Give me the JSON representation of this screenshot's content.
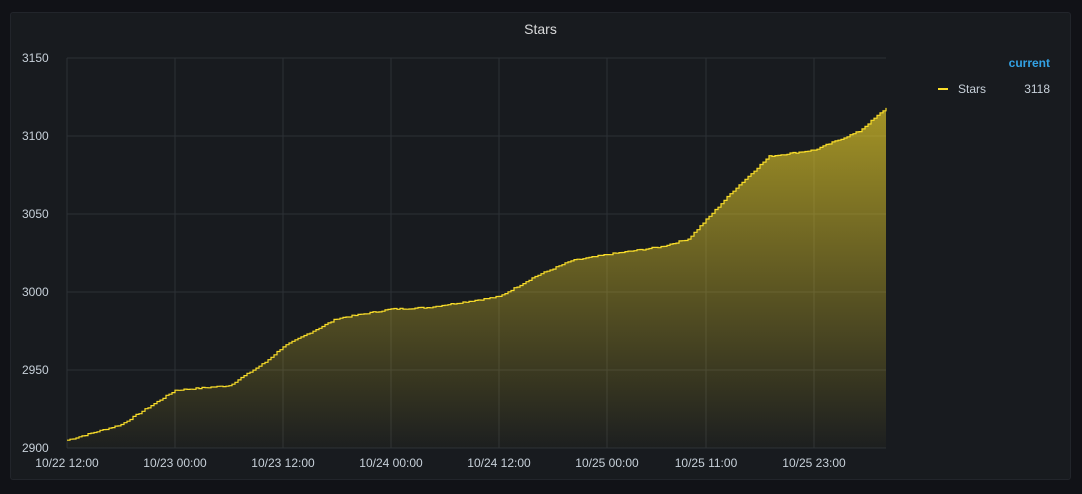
{
  "panel": {
    "title": "Stars"
  },
  "legend": {
    "header": "current",
    "items": [
      {
        "name": "Stars",
        "value": "3118",
        "color": "#fade2a"
      }
    ]
  },
  "chart_data": {
    "type": "area",
    "title": "Stars",
    "xlabel": "",
    "ylabel": "",
    "ylim": [
      2900,
      3150
    ],
    "yticks": [
      2900,
      2950,
      3000,
      3050,
      3100,
      3150
    ],
    "xlim": [
      "10/22 12:00",
      "10/26 07:00"
    ],
    "xticks": [
      "10/22 12:00",
      "10/23 00:00",
      "10/23 12:00",
      "10/24 00:00",
      "10/24 12:00",
      "10/25 00:00",
      "10/25 11:00",
      "10/25 23:00"
    ],
    "grid": true,
    "legend_position": "right",
    "series": [
      {
        "name": "Stars",
        "color": "#fade2a",
        "x": [
          "10/22 12:00",
          "10/22 18:00",
          "10/23 00:00",
          "10/23 06:00",
          "10/23 10:00",
          "10/23 12:00",
          "10/23 18:00",
          "10/24 00:00",
          "10/24 04:00",
          "10/24 12:00",
          "10/24 16:00",
          "10/24 20:00",
          "10/25 00:00",
          "10/25 06:00",
          "10/25 09:00",
          "10/25 14:00",
          "10/25 18:00",
          "10/25 23:00",
          "10/26 04:00",
          "10/26 07:00"
        ],
        "values": [
          2905,
          2915,
          2937,
          2940,
          2955,
          2965,
          2983,
          2989,
          2990,
          2997,
          3010,
          3020,
          3024,
          3029,
          3034,
          3065,
          3087,
          3091,
          3103,
          3118
        ]
      }
    ]
  }
}
